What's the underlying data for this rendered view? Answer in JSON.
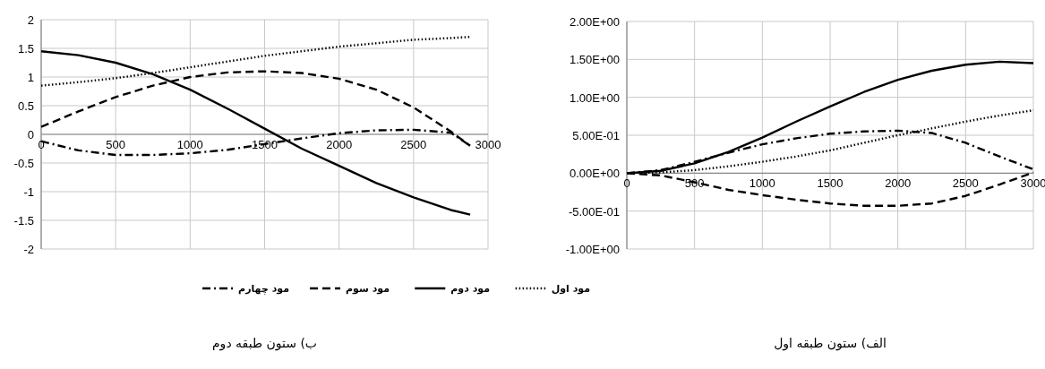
{
  "chart_data": [
    {
      "type": "line",
      "title": "ب) ستون طبقه دوم",
      "x": [
        0,
        250,
        500,
        750,
        1000,
        1250,
        1500,
        1750,
        2000,
        2250,
        2500,
        2750,
        2880
      ],
      "xlim": [
        0,
        3000
      ],
      "xticks": [
        0,
        500,
        1000,
        1500,
        2000,
        2500,
        3000
      ],
      "ylim": [
        -2,
        2
      ],
      "yticks": [
        -2,
        -1.5,
        -1,
        -0.5,
        0,
        0.5,
        1,
        1.5,
        2
      ],
      "grid": true,
      "legend": "bottom",
      "series": [
        {
          "name": "مود اول",
          "color": "#000000",
          "line_style": "dotted",
          "values": [
            0.85,
            0.91,
            0.98,
            1.07,
            1.17,
            1.27,
            1.37,
            1.45,
            1.53,
            1.59,
            1.65,
            1.68,
            1.7
          ]
        },
        {
          "name": "مود دوم",
          "color": "#000000",
          "line_style": "solid",
          "values": [
            1.45,
            1.38,
            1.25,
            1.05,
            0.78,
            0.45,
            0.1,
            -0.25,
            -0.55,
            -0.85,
            -1.1,
            -1.32,
            -1.4
          ]
        },
        {
          "name": "مود سوم",
          "color": "#000000",
          "line_style": "dashed",
          "values": [
            0.13,
            0.4,
            0.65,
            0.85,
            1.0,
            1.08,
            1.1,
            1.07,
            0.97,
            0.78,
            0.47,
            0.05,
            -0.2
          ]
        },
        {
          "name": "مود چهارم",
          "color": "#000000",
          "line_style": "dashdot",
          "values": [
            -0.12,
            -0.28,
            -0.36,
            -0.36,
            -0.33,
            -0.27,
            -0.17,
            -0.07,
            0.02,
            0.07,
            0.08,
            0.03,
            -0.2
          ]
        }
      ]
    },
    {
      "type": "line",
      "title": "الف) ستون طبقه اول",
      "x": [
        0,
        250,
        500,
        750,
        1000,
        1250,
        1500,
        1750,
        2000,
        2250,
        2500,
        2750,
        3000
      ],
      "xlim": [
        0,
        3000
      ],
      "xticks": [
        0,
        500,
        1000,
        1500,
        2000,
        2500,
        3000
      ],
      "ylim": [
        -1,
        2
      ],
      "yticks": [
        {
          "value": -1,
          "label": "-1.00E+00"
        },
        {
          "value": -0.5,
          "label": "-5.00E-01"
        },
        {
          "value": 0,
          "label": "0.00E+00"
        },
        {
          "value": 0.5,
          "label": "5.00E-01"
        },
        {
          "value": 1,
          "label": "1.00E+00"
        },
        {
          "value": 1.5,
          "label": "1.50E+00"
        },
        {
          "value": 2,
          "label": "2.00E+00"
        }
      ],
      "grid": true,
      "series": [
        {
          "color": "#000000",
          "line_style": "dotted",
          "values": [
            0,
            0.01,
            0.04,
            0.09,
            0.15,
            0.22,
            0.3,
            0.4,
            0.5,
            0.59,
            0.68,
            0.76,
            0.83
          ]
        },
        {
          "color": "#000000",
          "line_style": "solid",
          "values": [
            0,
            0.03,
            0.13,
            0.28,
            0.47,
            0.68,
            0.88,
            1.07,
            1.23,
            1.35,
            1.43,
            1.47,
            1.45
          ]
        },
        {
          "color": "#000000",
          "line_style": "dashed",
          "values": [
            0,
            -0.03,
            -0.12,
            -0.22,
            -0.29,
            -0.35,
            -0.4,
            -0.43,
            -0.43,
            -0.4,
            -0.3,
            -0.15,
            0.01
          ]
        },
        {
          "color": "#000000",
          "line_style": "dashdot",
          "values": [
            0,
            0.04,
            0.15,
            0.27,
            0.38,
            0.46,
            0.52,
            0.55,
            0.56,
            0.53,
            0.4,
            0.22,
            0.05
          ]
        }
      ]
    }
  ]
}
